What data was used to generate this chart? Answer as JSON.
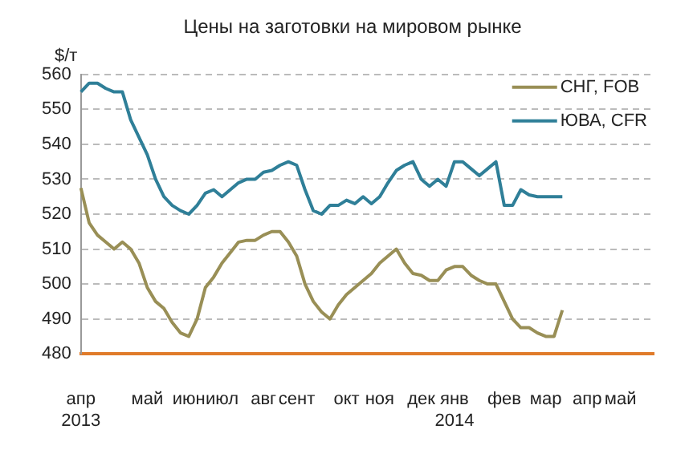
{
  "chart_data": {
    "type": "line",
    "title": "Цены на заготовки на мировом рынке",
    "ylabel": "$/т",
    "categories": [
      "апр\n2013",
      null,
      null,
      null,
      null,
      null,
      null,
      null,
      "май",
      null,
      null,
      null,
      null,
      "июн",
      null,
      null,
      null,
      "июл",
      null,
      null,
      null,
      null,
      "авг",
      null,
      null,
      null,
      "сент",
      null,
      null,
      null,
      null,
      null,
      "окт",
      null,
      null,
      null,
      "ноя",
      null,
      null,
      null,
      null,
      "дек",
      null,
      null,
      null,
      "янв\n2014",
      null,
      null,
      null,
      null,
      null,
      "фев",
      null,
      null,
      null,
      null,
      "мар",
      null,
      null,
      null,
      null,
      "апр",
      null,
      null,
      null,
      "май",
      null,
      null,
      null,
      null
    ],
    "series": [
      {
        "name": "СНГ, FOB",
        "color": "#998f56",
        "values": [
          527.5,
          517.5,
          514,
          512,
          510,
          512,
          510,
          506,
          499,
          495,
          493,
          489,
          486,
          485,
          490,
          499,
          502,
          506,
          509,
          512,
          512.5,
          512.5,
          514,
          515,
          515,
          512,
          508,
          500,
          495,
          492,
          490,
          494,
          497,
          499,
          501,
          503,
          506,
          508,
          510,
          506,
          503,
          502.5,
          501,
          501,
          504,
          505,
          505,
          502.5,
          501,
          500,
          500,
          495,
          490,
          487.5,
          487.5,
          486,
          485,
          485,
          492.5,
          null,
          null,
          null,
          null,
          null,
          null,
          null,
          null,
          null,
          null,
          null
        ]
      },
      {
        "name": "ЮВА, CFR",
        "color": "#2f7f98",
        "values": [
          555,
          557.5,
          557.5,
          556,
          555,
          555,
          547,
          542,
          537,
          530,
          525,
          522.5,
          521,
          520,
          522.5,
          526,
          527,
          525,
          527,
          529,
          530,
          530,
          532,
          532.5,
          534,
          535,
          534,
          527,
          521,
          520,
          522.5,
          522.5,
          524,
          523,
          525,
          523,
          525,
          529,
          532.5,
          534,
          535,
          530,
          528,
          530,
          528,
          535,
          535,
          533,
          531,
          533,
          535,
          522.5,
          522.5,
          527,
          525.5,
          525,
          525,
          525,
          525,
          null,
          null,
          null,
          null,
          null,
          null,
          null,
          null,
          null,
          null,
          null
        ]
      }
    ],
    "ylim": [
      480,
      560
    ],
    "yticks": [
      480,
      490,
      500,
      510,
      520,
      530,
      540,
      550,
      560
    ],
    "grid": "y",
    "legend": "top right",
    "line_style": "solid",
    "marker": "none"
  }
}
